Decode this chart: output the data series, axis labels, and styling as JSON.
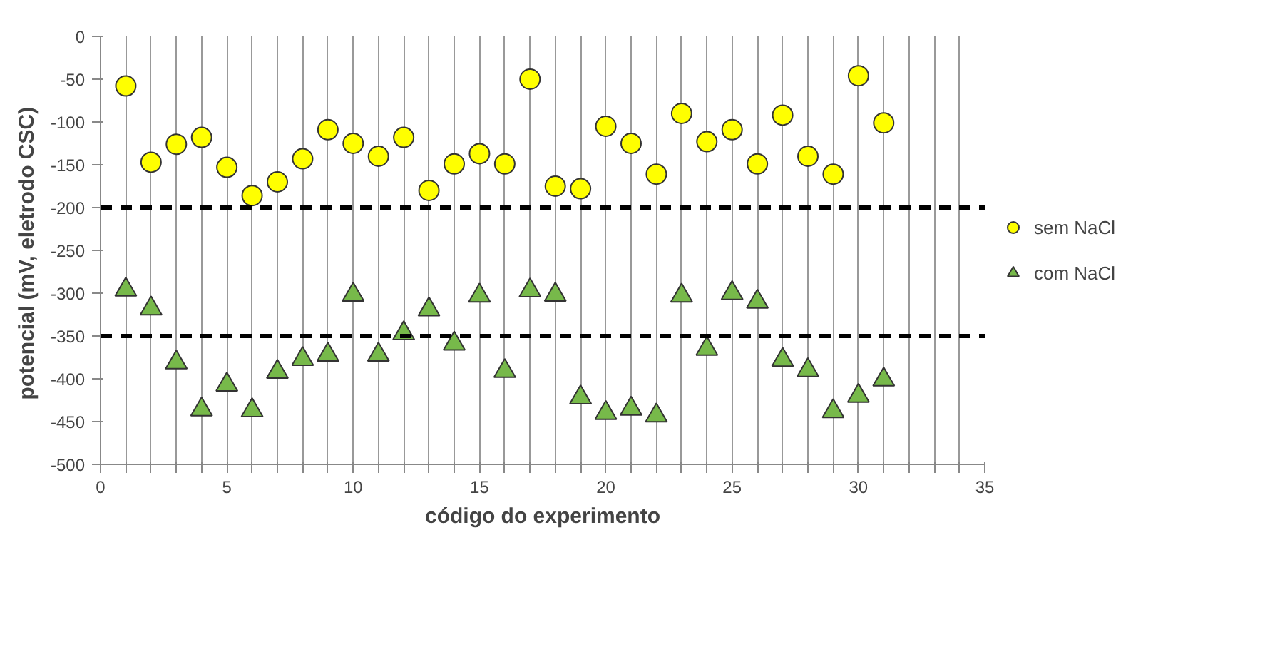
{
  "chart_data": {
    "type": "scatter",
    "xlabel": "código do experimento",
    "ylabel": "potencial  (mV, eletrodo CSC)",
    "x": [
      1,
      2,
      3,
      4,
      5,
      6,
      7,
      8,
      9,
      10,
      11,
      12,
      13,
      14,
      15,
      16,
      17,
      18,
      19,
      20,
      21,
      22,
      23,
      24,
      25,
      26,
      27,
      28,
      29,
      30,
      31
    ],
    "series": [
      {
        "name": "sem NaCl",
        "color": "#ffff00",
        "marker": "circle",
        "values": [
          -58,
          -147,
          -126,
          -118,
          -153,
          -186,
          -170,
          -143,
          -109,
          -125,
          -140,
          -118,
          -180,
          -149,
          -137,
          -149,
          -50,
          -175,
          -178,
          -105,
          -125,
          -161,
          -90,
          -123,
          -109,
          -149,
          -92,
          -140,
          -161,
          -46,
          -101
        ]
      },
      {
        "name": "com NaCl",
        "color": "#77b94a",
        "marker": "triangle",
        "values": [
          -296,
          -318,
          -381,
          -436,
          -407,
          -437,
          -392,
          -377,
          -372,
          -302,
          -372,
          -347,
          -319,
          -359,
          -303,
          -391,
          -297,
          -302,
          -422,
          -440,
          -435,
          -443,
          -303,
          -365,
          -300,
          -310,
          -378,
          -390,
          -438,
          -420,
          -401
        ]
      }
    ],
    "xlim": [
      0,
      35
    ],
    "xticks": [
      0,
      {
        "value": 1,
        "label": null
      },
      {
        "value": 2,
        "label": null
      },
      {
        "value": 3,
        "label": null
      },
      {
        "value": 4,
        "label": null
      },
      5,
      {
        "value": 6,
        "label": null
      },
      {
        "value": 7,
        "label": null
      },
      {
        "value": 8,
        "label": null
      },
      {
        "value": 9,
        "label": null
      },
      10,
      {
        "value": 11,
        "label": null
      },
      {
        "value": 12,
        "label": null
      },
      {
        "value": 13,
        "label": null
      },
      {
        "value": 14,
        "label": null
      },
      15,
      {
        "value": 16,
        "label": null
      },
      {
        "value": 17,
        "label": null
      },
      {
        "value": 18,
        "label": null
      },
      {
        "value": 19,
        "label": null
      },
      20,
      {
        "value": 21,
        "label": null
      },
      {
        "value": 22,
        "label": null
      },
      {
        "value": 23,
        "label": null
      },
      {
        "value": 24,
        "label": null
      },
      25,
      {
        "value": 26,
        "label": null
      },
      {
        "value": 27,
        "label": null
      },
      {
        "value": 28,
        "label": null
      },
      {
        "value": 29,
        "label": null
      },
      30,
      {
        "value": 31,
        "label": null
      },
      {
        "value": 32,
        "label": null
      },
      {
        "value": 33,
        "label": null
      },
      {
        "value": 34,
        "label": null
      },
      35
    ],
    "ylim": [
      -500,
      0
    ],
    "yticks": [
      -500,
      -450,
      -400,
      -350,
      -300,
      -250,
      -200,
      -150,
      -100,
      -50,
      0
    ],
    "grid": "x",
    "legend": "right",
    "ref_lines": [
      {
        "axis": "y",
        "value": -200,
        "color": "#000000",
        "line_style": "dashed"
      },
      {
        "axis": "y",
        "value": -350,
        "color": "#000000",
        "line_style": "dashed"
      }
    ]
  }
}
